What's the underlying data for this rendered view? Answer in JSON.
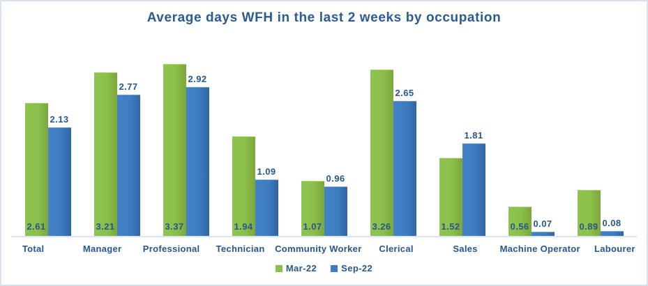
{
  "chart_data": {
    "type": "bar",
    "title": "Average days WFH in the last 2 weeks by occupation",
    "categories": [
      "Total",
      "Manager",
      "Professional",
      "Technician",
      "Community Worker",
      "Clerical",
      "Sales",
      "Machine Operator",
      "Labourer"
    ],
    "series": [
      {
        "name": "Mar-22",
        "color": "#8CBF4A",
        "values": [
          2.61,
          3.21,
          3.37,
          1.94,
          1.07,
          3.26,
          1.52,
          0.56,
          0.89
        ],
        "value_label_position": "inside-base"
      },
      {
        "name": "Sep-22",
        "color": "#3E7CC1",
        "values": [
          2.13,
          2.77,
          2.92,
          1.09,
          0.96,
          2.65,
          1.81,
          0.07,
          0.08
        ],
        "value_label_position": "above-bar"
      }
    ],
    "xlabel": "",
    "ylabel": "",
    "ylim": [
      0,
      3.7
    ],
    "grid": false,
    "y_axis_visible": false,
    "x_axis_line": true,
    "legend_position": "bottom-center",
    "value_label_decimals": 2
  },
  "colors": {
    "text_navy": "#26578C",
    "title_navy": "#2A5C91",
    "bar_green": "#8CBF4A",
    "bar_green_dark": "#7CA63C",
    "bar_blue": "#3E7CC1",
    "bar_blue_dark": "#3265A3",
    "axis_line": "#D9E6F2",
    "frame_border": "#D5E3F1",
    "background": "#FFFFFF"
  }
}
